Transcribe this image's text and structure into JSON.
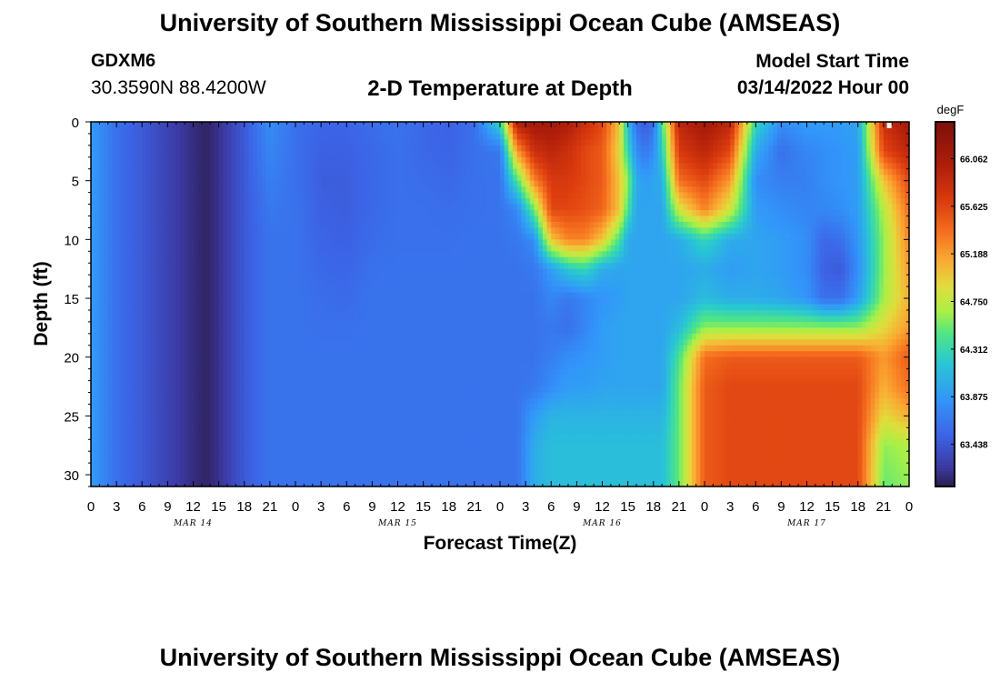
{
  "header": {
    "title": "University of Southern Mississippi Ocean Cube (AMSEAS)",
    "station": "GDXM6",
    "coords": "30.3590N  88.4200W",
    "model_start_label": "Model Start Time",
    "model_start_value": "03/14/2022 Hour 00"
  },
  "footer": {
    "title": "University of Southern Mississippi Ocean Cube (AMSEAS)"
  },
  "chart_data": {
    "type": "heatmap",
    "title": "2-D Temperature at Depth",
    "xlabel": "Forecast Time(Z)",
    "ylabel": "Depth (ft)",
    "x_range_hours": [
      0,
      96
    ],
    "y_range_ft": [
      0,
      31
    ],
    "y_inverted": true,
    "x_tick_labels": [
      "0",
      "3",
      "6",
      "9",
      "12",
      "15",
      "18",
      "21",
      "0",
      "3",
      "6",
      "9",
      "12",
      "15",
      "18",
      "21",
      "0",
      "3",
      "6",
      "9",
      "12",
      "15",
      "18",
      "21",
      "0",
      "3",
      "6",
      "9",
      "12",
      "15",
      "18",
      "21",
      "0"
    ],
    "day_labels": [
      {
        "hour": 12,
        "label": "MAR 14"
      },
      {
        "hour": 36,
        "label": "MAR 15"
      },
      {
        "hour": 60,
        "label": "MAR 16"
      },
      {
        "hour": 84,
        "label": "MAR 17"
      }
    ],
    "y_ticks": [
      0,
      5,
      10,
      15,
      20,
      25,
      30
    ],
    "colorbar": {
      "unit": "degF",
      "range": [
        63.05,
        66.4
      ],
      "labels": [
        "66.062",
        "65.625",
        "65.188",
        "64.750",
        "64.312",
        "63.875",
        "63.438"
      ]
    },
    "depths_ft": [
      0,
      2.5,
      5,
      7.5,
      10,
      12.5,
      15,
      17.5,
      20,
      22.5,
      25,
      27.5,
      31
    ],
    "times_hr": [
      0,
      3,
      6,
      9,
      12,
      13.5,
      15,
      18,
      21,
      24,
      27,
      30,
      33,
      36,
      39,
      42,
      45,
      48,
      50,
      52,
      54,
      56,
      58,
      60,
      62,
      63,
      64,
      65,
      66,
      67,
      69,
      72,
      75,
      78,
      81,
      84,
      86,
      88,
      90,
      93,
      96
    ],
    "temperature_degF": [
      [
        63.9,
        63.9,
        63.9,
        63.9,
        63.9,
        63.9,
        63.9,
        63.9,
        63.9,
        63.9,
        63.9,
        63.9,
        63.9
      ],
      [
        63.6,
        63.6,
        63.6,
        63.6,
        63.6,
        63.6,
        63.6,
        63.6,
        63.6,
        63.6,
        63.6,
        63.6,
        63.6
      ],
      [
        63.45,
        63.45,
        63.45,
        63.45,
        63.45,
        63.45,
        63.45,
        63.45,
        63.45,
        63.45,
        63.45,
        63.45,
        63.45
      ],
      [
        63.3,
        63.3,
        63.3,
        63.3,
        63.3,
        63.3,
        63.3,
        63.3,
        63.3,
        63.3,
        63.3,
        63.3,
        63.3
      ],
      [
        63.15,
        63.15,
        63.15,
        63.15,
        63.15,
        63.15,
        63.15,
        63.15,
        63.15,
        63.15,
        63.15,
        63.15,
        63.15
      ],
      [
        63.1,
        63.1,
        63.1,
        63.1,
        63.1,
        63.1,
        63.1,
        63.1,
        63.1,
        63.1,
        63.1,
        63.1,
        63.1
      ],
      [
        63.18,
        63.18,
        63.18,
        63.18,
        63.18,
        63.18,
        63.18,
        63.18,
        63.18,
        63.18,
        63.18,
        63.18,
        63.18
      ],
      [
        63.45,
        63.45,
        63.45,
        63.45,
        63.45,
        63.45,
        63.45,
        63.45,
        63.45,
        63.45,
        63.45,
        63.45,
        63.45
      ],
      [
        63.8,
        63.75,
        63.7,
        63.65,
        63.62,
        63.62,
        63.62,
        63.62,
        63.62,
        63.62,
        63.62,
        63.62,
        63.62
      ],
      [
        63.6,
        63.6,
        63.6,
        63.62,
        63.62,
        63.62,
        63.62,
        63.62,
        63.62,
        63.62,
        63.62,
        63.62,
        63.62
      ],
      [
        63.52,
        63.5,
        63.48,
        63.5,
        63.52,
        63.55,
        63.58,
        63.6,
        63.62,
        63.62,
        63.62,
        63.62,
        63.62
      ],
      [
        63.52,
        63.5,
        63.48,
        63.48,
        63.5,
        63.53,
        63.56,
        63.6,
        63.62,
        63.62,
        63.62,
        63.62,
        63.62
      ],
      [
        63.58,
        63.55,
        63.55,
        63.55,
        63.57,
        63.6,
        63.62,
        63.62,
        63.62,
        63.62,
        63.62,
        63.62,
        63.62
      ],
      [
        63.62,
        63.6,
        63.6,
        63.6,
        63.6,
        63.62,
        63.62,
        63.62,
        63.62,
        63.62,
        63.62,
        63.62,
        63.62
      ],
      [
        63.55,
        63.55,
        63.58,
        63.6,
        63.6,
        63.62,
        63.62,
        63.62,
        63.62,
        63.62,
        63.62,
        63.62,
        63.62
      ],
      [
        63.5,
        63.52,
        63.55,
        63.58,
        63.6,
        63.62,
        63.62,
        63.62,
        63.62,
        63.62,
        63.62,
        63.62,
        63.62
      ],
      [
        63.6,
        63.6,
        63.6,
        63.6,
        63.62,
        63.62,
        63.62,
        63.62,
        63.62,
        63.62,
        63.62,
        63.62,
        63.62
      ],
      [
        64.3,
        63.65,
        63.62,
        63.62,
        63.62,
        63.62,
        63.62,
        63.62,
        63.62,
        63.62,
        63.62,
        63.62,
        63.62
      ],
      [
        66.0,
        65.2,
        64.4,
        63.75,
        63.65,
        63.62,
        63.62,
        63.62,
        63.62,
        63.62,
        63.62,
        63.62,
        63.62
      ],
      [
        66.1,
        65.8,
        65.3,
        64.5,
        63.8,
        63.65,
        63.62,
        63.62,
        63.62,
        63.65,
        63.9,
        64.0,
        64.0
      ],
      [
        66.1,
        65.9,
        65.7,
        65.6,
        65.0,
        63.9,
        63.75,
        63.65,
        63.7,
        63.8,
        64.05,
        64.12,
        64.12
      ],
      [
        66.0,
        65.8,
        65.7,
        65.6,
        65.3,
        64.2,
        63.65,
        63.6,
        63.8,
        63.9,
        64.05,
        64.12,
        64.12
      ],
      [
        65.8,
        65.6,
        65.6,
        65.55,
        65.3,
        64.3,
        63.75,
        63.75,
        63.85,
        63.9,
        64.05,
        64.12,
        64.12
      ],
      [
        65.6,
        65.5,
        65.5,
        65.45,
        65.0,
        64.0,
        63.85,
        63.9,
        63.9,
        63.95,
        64.05,
        64.12,
        64.12
      ],
      [
        65.0,
        64.9,
        65.0,
        65.0,
        64.4,
        63.95,
        63.9,
        63.95,
        63.95,
        63.95,
        64.05,
        64.12,
        64.12
      ],
      [
        64.1,
        64.3,
        64.6,
        64.4,
        64.0,
        63.95,
        63.95,
        63.95,
        63.95,
        63.95,
        64.05,
        64.12,
        64.12
      ],
      [
        63.6,
        63.8,
        64.0,
        63.95,
        63.95,
        63.95,
        63.95,
        63.95,
        63.95,
        63.95,
        64.05,
        64.12,
        64.12
      ],
      [
        63.45,
        63.65,
        63.9,
        63.95,
        63.95,
        63.95,
        63.95,
        63.95,
        63.95,
        63.95,
        64.05,
        64.12,
        64.12
      ],
      [
        63.6,
        63.8,
        63.95,
        63.95,
        63.95,
        63.95,
        63.95,
        63.95,
        63.95,
        63.95,
        64.05,
        64.12,
        64.12
      ],
      [
        64.4,
        64.2,
        64.0,
        63.95,
        63.95,
        63.95,
        63.95,
        63.95,
        63.95,
        63.95,
        64.05,
        64.12,
        64.12
      ],
      [
        65.9,
        65.7,
        65.4,
        64.8,
        64.0,
        63.95,
        63.95,
        64.1,
        64.4,
        64.5,
        64.5,
        64.5,
        64.5
      ],
      [
        66.1,
        65.9,
        65.6,
        65.3,
        64.3,
        64.0,
        64.1,
        64.6,
        65.4,
        65.5,
        65.5,
        65.5,
        65.5
      ],
      [
        65.9,
        65.6,
        65.2,
        64.8,
        64.0,
        63.9,
        64.0,
        64.6,
        65.5,
        65.6,
        65.6,
        65.6,
        65.6
      ],
      [
        64.3,
        64.0,
        63.8,
        63.9,
        63.95,
        63.95,
        64.0,
        64.6,
        65.5,
        65.6,
        65.6,
        65.6,
        65.6
      ],
      [
        63.8,
        63.6,
        63.7,
        63.8,
        63.9,
        63.9,
        63.95,
        64.6,
        65.5,
        65.6,
        65.6,
        65.6,
        65.6
      ],
      [
        63.9,
        63.75,
        63.7,
        63.75,
        63.8,
        63.8,
        63.85,
        64.6,
        65.5,
        65.6,
        65.6,
        65.6,
        65.6
      ],
      [
        63.9,
        63.8,
        63.8,
        63.75,
        63.55,
        63.5,
        63.6,
        64.6,
        65.5,
        65.6,
        65.6,
        65.6,
        65.6
      ],
      [
        63.9,
        63.85,
        63.85,
        63.8,
        63.6,
        63.45,
        63.6,
        64.6,
        65.5,
        65.6,
        65.6,
        65.6,
        65.6
      ],
      [
        63.95,
        63.9,
        63.9,
        63.9,
        63.85,
        63.8,
        63.9,
        64.6,
        65.5,
        65.6,
        65.6,
        65.6,
        65.6
      ],
      [
        65.8,
        65.6,
        65.0,
        64.7,
        64.6,
        64.6,
        64.65,
        64.9,
        65.2,
        65.1,
        64.9,
        64.6,
        64.5
      ],
      [
        66.1,
        65.9,
        65.6,
        65.4,
        65.3,
        65.2,
        65.1,
        65.2,
        65.5,
        65.4,
        65.1,
        64.7,
        64.6
      ]
    ]
  }
}
